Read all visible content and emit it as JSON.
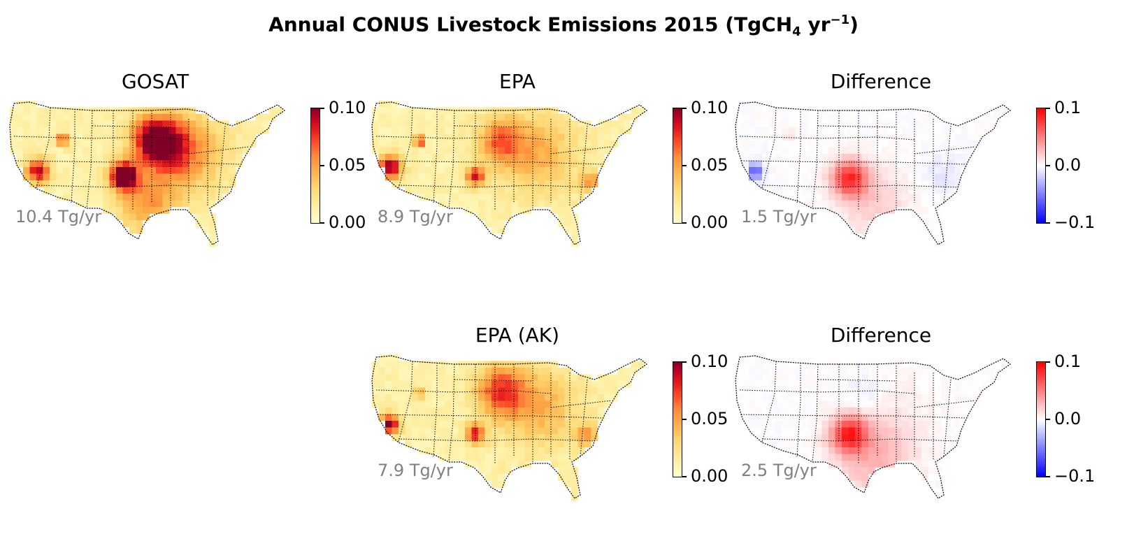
{
  "figure": {
    "title_main": "Annual CONUS Livestock Emissions 2015 (TgCH",
    "title_sub": "4",
    "title_mid": " yr",
    "title_sup": "−1",
    "title_end": ")"
  },
  "panels": [
    {
      "id": "gosat",
      "title": "GOSAT",
      "total": "10.4 Tg/yr",
      "scale": "seq",
      "cbar_ticks": [
        "0.10",
        "0.05",
        "0.00"
      ]
    },
    {
      "id": "epa",
      "title": "EPA",
      "total": "8.9 Tg/yr",
      "scale": "seq",
      "cbar_ticks": [
        "0.10",
        "0.05",
        "0.00"
      ]
    },
    {
      "id": "diff1",
      "title": "Difference",
      "total": "1.5 Tg/yr",
      "scale": "div",
      "cbar_ticks": [
        "0.1",
        "0.0",
        "−0.1"
      ]
    },
    {
      "id": "epa_ak",
      "title": "EPA (AK)",
      "total": "7.9 Tg/yr",
      "scale": "seq",
      "cbar_ticks": [
        "0.10",
        "0.05",
        "0.00"
      ]
    },
    {
      "id": "diff2",
      "title": "Difference",
      "total": "2.5 Tg/yr",
      "scale": "div",
      "cbar_ticks": [
        "0.1",
        "0.0",
        "−0.1"
      ]
    }
  ],
  "colors": {
    "sequential": "YlOrRd",
    "diverging": "bwr",
    "total_text": "#808080"
  }
}
